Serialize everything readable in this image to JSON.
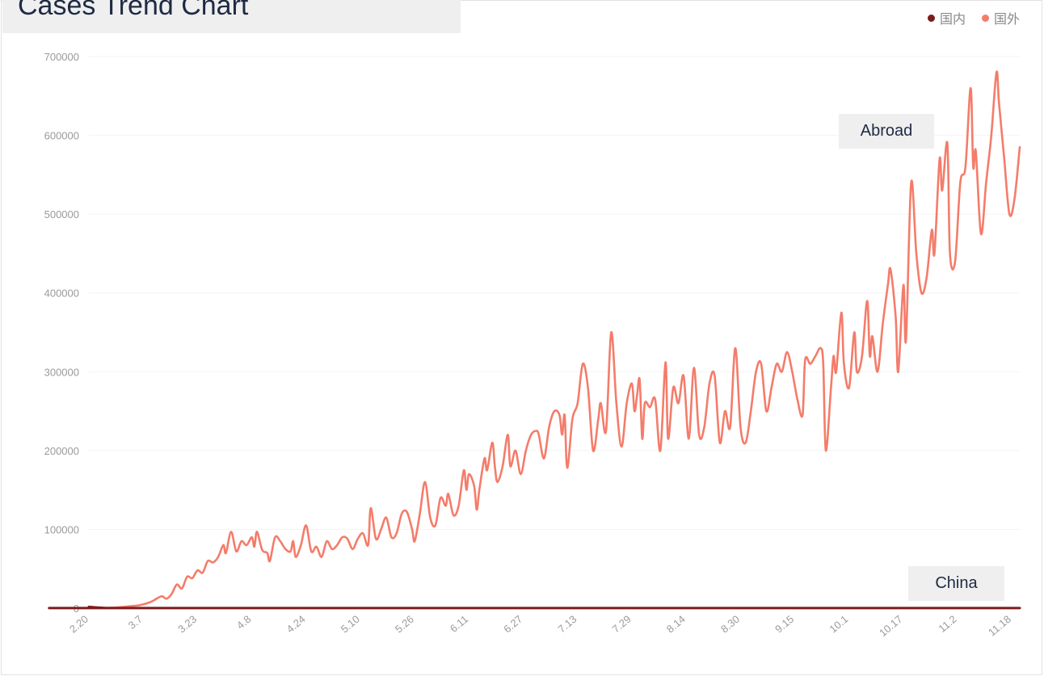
{
  "title": "Cases Trend Chart",
  "legend": [
    {
      "label": "国内",
      "color": "#7b1c1c"
    },
    {
      "label": "国外",
      "color": "#f47c6a"
    }
  ],
  "annotations": {
    "abroad": "Abroad",
    "china": "China"
  },
  "chart_data": {
    "type": "line",
    "title": "Cases Trend Chart",
    "xlabel": "",
    "ylabel": "",
    "ylim": [
      0,
      700000
    ],
    "yticks": [
      "0",
      "100000",
      "200000",
      "300000",
      "400000",
      "500000",
      "600000",
      "700000"
    ],
    "x_tick_labels": [
      "2.20",
      "3.7",
      "3.23",
      "4.8",
      "4.24",
      "5.10",
      "5.26",
      "6.11",
      "6.27",
      "7.13",
      "7.29",
      "8.14",
      "8.30",
      "9.15",
      "10.1",
      "10.17",
      "11.2",
      "11.18"
    ],
    "grid": "horizontal",
    "legend_position": "top-right",
    "series": [
      {
        "name": "国外",
        "color": "#f47c6a",
        "keypoints_day_value": [
          [
            0,
            2000
          ],
          [
            4,
            800
          ],
          [
            8,
            500
          ],
          [
            12,
            1200
          ],
          [
            16,
            2500
          ],
          [
            20,
            4000
          ],
          [
            24,
            8000
          ],
          [
            28,
            15000
          ],
          [
            30,
            12000
          ],
          [
            32,
            18000
          ],
          [
            34,
            30000
          ],
          [
            36,
            25000
          ],
          [
            38,
            40000
          ],
          [
            40,
            38000
          ],
          [
            42,
            48000
          ],
          [
            44,
            45000
          ],
          [
            46,
            60000
          ],
          [
            48,
            58000
          ],
          [
            50,
            65000
          ],
          [
            52,
            80000
          ],
          [
            53,
            70000
          ],
          [
            55,
            97000
          ],
          [
            57,
            72000
          ],
          [
            59,
            85000
          ],
          [
            61,
            80000
          ],
          [
            63,
            90000
          ],
          [
            64,
            78000
          ],
          [
            65,
            97000
          ],
          [
            67,
            74000
          ],
          [
            69,
            70000
          ],
          [
            70,
            60000
          ],
          [
            72,
            90000
          ],
          [
            74,
            85000
          ],
          [
            76,
            75000
          ],
          [
            78,
            72000
          ],
          [
            79,
            85000
          ],
          [
            80,
            65000
          ],
          [
            82,
            80000
          ],
          [
            84,
            105000
          ],
          [
            86,
            72000
          ],
          [
            88,
            78000
          ],
          [
            90,
            65000
          ],
          [
            92,
            85000
          ],
          [
            94,
            75000
          ],
          [
            96,
            80000
          ],
          [
            98,
            90000
          ],
          [
            100,
            88000
          ],
          [
            102,
            75000
          ],
          [
            104,
            88000
          ],
          [
            106,
            95000
          ],
          [
            108,
            80000
          ],
          [
            109,
            127000
          ],
          [
            111,
            88000
          ],
          [
            113,
            100000
          ],
          [
            115,
            115000
          ],
          [
            117,
            90000
          ],
          [
            119,
            95000
          ],
          [
            121,
            120000
          ],
          [
            123,
            122000
          ],
          [
            125,
            100000
          ],
          [
            126,
            85000
          ],
          [
            128,
            120000
          ],
          [
            130,
            160000
          ],
          [
            132,
            115000
          ],
          [
            134,
            105000
          ],
          [
            136,
            140000
          ],
          [
            138,
            130000
          ],
          [
            139,
            145000
          ],
          [
            141,
            118000
          ],
          [
            143,
            130000
          ],
          [
            145,
            175000
          ],
          [
            146,
            150000
          ],
          [
            147,
            170000
          ],
          [
            149,
            155000
          ],
          [
            150,
            125000
          ],
          [
            151,
            150000
          ],
          [
            153,
            190000
          ],
          [
            154,
            175000
          ],
          [
            156,
            210000
          ],
          [
            157,
            180000
          ],
          [
            158,
            160000
          ],
          [
            160,
            180000
          ],
          [
            162,
            220000
          ],
          [
            163,
            180000
          ],
          [
            165,
            200000
          ],
          [
            167,
            170000
          ],
          [
            169,
            200000
          ],
          [
            171,
            220000
          ],
          [
            173,
            225000
          ],
          [
            174,
            220000
          ],
          [
            176,
            190000
          ],
          [
            178,
            230000
          ],
          [
            180,
            250000
          ],
          [
            182,
            245000
          ],
          [
            183,
            220000
          ],
          [
            184,
            245000
          ],
          [
            185,
            178000
          ],
          [
            187,
            240000
          ],
          [
            189,
            260000
          ],
          [
            191,
            310000
          ],
          [
            193,
            280000
          ],
          [
            195,
            200000
          ],
          [
            197,
            240000
          ],
          [
            198,
            260000
          ],
          [
            200,
            225000
          ],
          [
            202,
            350000
          ],
          [
            204,
            260000
          ],
          [
            206,
            205000
          ],
          [
            208,
            260000
          ],
          [
            210,
            285000
          ],
          [
            211,
            250000
          ],
          [
            212,
            270000
          ],
          [
            213,
            290000
          ],
          [
            214,
            215000
          ],
          [
            215,
            260000
          ],
          [
            217,
            255000
          ],
          [
            219,
            265000
          ],
          [
            221,
            200000
          ],
          [
            223,
            312000
          ],
          [
            224,
            215000
          ],
          [
            226,
            280000
          ],
          [
            228,
            260000
          ],
          [
            230,
            295000
          ],
          [
            232,
            215000
          ],
          [
            234,
            305000
          ],
          [
            236,
            220000
          ],
          [
            238,
            230000
          ],
          [
            240,
            285000
          ],
          [
            242,
            295000
          ],
          [
            244,
            210000
          ],
          [
            246,
            250000
          ],
          [
            248,
            230000
          ],
          [
            250,
            330000
          ],
          [
            252,
            230000
          ],
          [
            254,
            210000
          ],
          [
            256,
            250000
          ],
          [
            258,
            300000
          ],
          [
            260,
            310000
          ],
          [
            262,
            250000
          ],
          [
            264,
            280000
          ],
          [
            266,
            310000
          ],
          [
            268,
            300000
          ],
          [
            270,
            325000
          ],
          [
            272,
            300000
          ],
          [
            274,
            265000
          ],
          [
            276,
            245000
          ],
          [
            277,
            315000
          ],
          [
            279,
            310000
          ],
          [
            281,
            320000
          ],
          [
            283,
            330000
          ],
          [
            284,
            310000
          ],
          [
            285,
            200000
          ],
          [
            287,
            280000
          ],
          [
            288,
            320000
          ],
          [
            289,
            300000
          ],
          [
            291,
            375000
          ],
          [
            292,
            310000
          ],
          [
            294,
            280000
          ],
          [
            296,
            350000
          ],
          [
            297,
            300000
          ],
          [
            299,
            320000
          ],
          [
            301,
            390000
          ],
          [
            302,
            320000
          ],
          [
            303,
            345000
          ],
          [
            305,
            300000
          ],
          [
            307,
            360000
          ],
          [
            309,
            410000
          ],
          [
            310,
            430000
          ],
          [
            312,
            370000
          ],
          [
            313,
            300000
          ],
          [
            315,
            410000
          ],
          [
            316,
            340000
          ],
          [
            318,
            540000
          ],
          [
            320,
            450000
          ],
          [
            322,
            400000
          ],
          [
            324,
            420000
          ],
          [
            326,
            480000
          ],
          [
            327,
            450000
          ],
          [
            329,
            570000
          ],
          [
            330,
            530000
          ],
          [
            332,
            590000
          ],
          [
            333,
            450000
          ],
          [
            335,
            440000
          ],
          [
            337,
            540000
          ],
          [
            339,
            560000
          ],
          [
            341,
            660000
          ],
          [
            342,
            560000
          ],
          [
            343,
            580000
          ],
          [
            345,
            475000
          ],
          [
            347,
            540000
          ],
          [
            349,
            600000
          ],
          [
            351,
            680000
          ],
          [
            352,
            640000
          ],
          [
            354,
            570000
          ],
          [
            356,
            500000
          ],
          [
            358,
            520000
          ],
          [
            360,
            585000
          ]
        ]
      },
      {
        "name": "国内",
        "color": "#7b1c1c",
        "keypoints_day_value": [
          [
            0,
            1500
          ],
          [
            6,
            300
          ],
          [
            12,
            100
          ],
          [
            360,
            100
          ]
        ]
      }
    ]
  }
}
